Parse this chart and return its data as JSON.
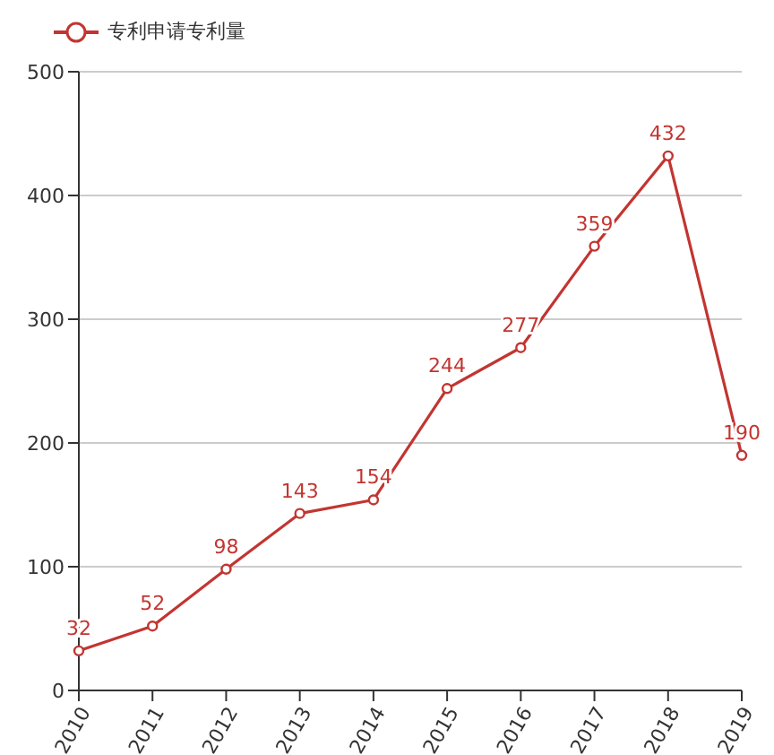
{
  "chart_data": {
    "type": "line",
    "categories": [
      "2010",
      "2011",
      "2012",
      "2013",
      "2014",
      "2015",
      "2016",
      "2017",
      "2018",
      "2019"
    ],
    "series": [
      {
        "name": "专利申请专利量",
        "color": "#c23531",
        "values": [
          32,
          52,
          98,
          143,
          154,
          244,
          277,
          359,
          432,
          190
        ]
      }
    ],
    "ylim": [
      0,
      500
    ],
    "yticks": [
      0,
      100,
      200,
      300,
      400,
      500
    ],
    "grid": "y",
    "legend": "top left",
    "marker": "circle",
    "data_labels": true
  }
}
